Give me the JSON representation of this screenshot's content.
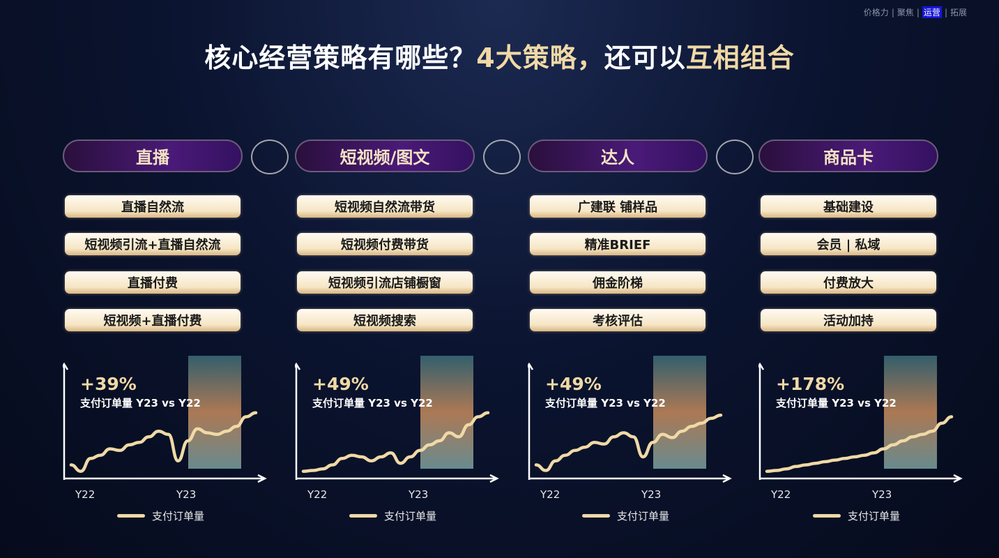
{
  "nav": {
    "items": [
      "价格力",
      "聚焦",
      "运营",
      "拓展"
    ],
    "active": 2,
    "separator": "|"
  },
  "title": {
    "part1": "核心经营策略有哪些？",
    "part2": "4大策略，",
    "part3": "还可以",
    "part4": "互相组合"
  },
  "colors": {
    "accent_gold": "#f0d9a6",
    "line": "#f0d9a6",
    "nav_active": "#1616d8"
  },
  "columns": [
    {
      "header": "直播",
      "items": [
        "直播自然流",
        "短视频引流+直播自然流",
        "直播付费",
        "短视频+直播付费"
      ],
      "growth": "+39%",
      "metric": "支付订单量 Y23 vs Y22",
      "x_labels": [
        "Y22",
        "Y23"
      ],
      "legend": "支付订单量",
      "series": [
        10,
        2,
        18,
        22,
        30,
        28,
        35,
        38,
        45,
        52,
        48,
        15,
        40,
        55,
        50,
        48,
        52,
        58,
        70,
        75
      ]
    },
    {
      "header": "短视频/图文",
      "items": [
        "短视频自然流带货",
        "短视频付费带货",
        "短视频引流店铺橱窗",
        "短视频搜索"
      ],
      "growth": "+49%",
      "metric": "支付订单量 Y23 vs Y22",
      "x_labels": [
        "Y22",
        "Y23"
      ],
      "legend": "支付订单量",
      "series": [
        2,
        3,
        5,
        10,
        18,
        22,
        20,
        15,
        20,
        25,
        12,
        20,
        28,
        35,
        40,
        50,
        45,
        60,
        70,
        75
      ]
    },
    {
      "header": "达人",
      "items": [
        "广建联 铺样品",
        "精准BRIEF",
        "佣金阶梯",
        "考核评估"
      ],
      "growth": "+49%",
      "metric": "支付订单量 Y23 vs Y22",
      "x_labels": [
        "Y22",
        "Y23"
      ],
      "legend": "支付订单量",
      "series": [
        10,
        3,
        15,
        22,
        28,
        32,
        38,
        36,
        45,
        50,
        45,
        20,
        38,
        48,
        44,
        52,
        58,
        62,
        68,
        72
      ]
    },
    {
      "header": "商品卡",
      "items": [
        "基础建设",
        "会员 | 私域",
        "付费放大",
        "活动加持"
      ],
      "growth": "+178%",
      "metric": "支付订单量 Y23 vs Y22",
      "x_labels": [
        "Y22",
        "Y23"
      ],
      "legend": "支付订单量",
      "series": [
        2,
        3,
        5,
        8,
        10,
        12,
        14,
        16,
        18,
        20,
        22,
        25,
        30,
        35,
        40,
        45,
        48,
        52,
        62,
        70
      ]
    }
  ]
}
